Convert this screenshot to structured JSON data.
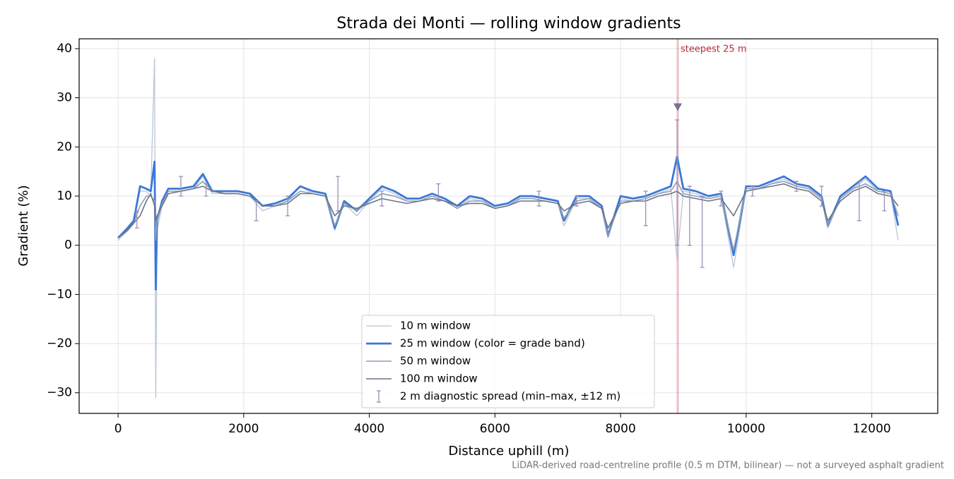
{
  "chart_data": {
    "type": "line",
    "title": "Strada dei Monti — rolling window gradients",
    "xlabel": "Distance uphill (m)",
    "ylabel": "Gradient (%)",
    "footnote": "LiDAR-derived road-centreline profile (0.5 m DTM, bilinear) — not a surveyed asphalt gradient",
    "xlim": [
      -620,
      13050
    ],
    "ylim": [
      -34.2,
      42
    ],
    "xticks": [
      0,
      2000,
      4000,
      6000,
      8000,
      10000,
      12000
    ],
    "yticks": [
      {
        "value": -30,
        "label": "−30"
      },
      {
        "value": -20,
        "label": "−20"
      },
      {
        "value": -10,
        "label": "−10"
      },
      0,
      10,
      20,
      30,
      40
    ],
    "grid": true,
    "legend": "lower center",
    "x": [
      0,
      150,
      250,
      350,
      450,
      520,
      580,
      600,
      620,
      700,
      800,
      1000,
      1200,
      1350,
      1500,
      1700,
      1900,
      2100,
      2300,
      2500,
      2700,
      2900,
      3100,
      3300,
      3450,
      3600,
      3800,
      4000,
      4200,
      4400,
      4600,
      4800,
      5000,
      5200,
      5400,
      5600,
      5800,
      6000,
      6200,
      6400,
      6600,
      6800,
      7000,
      7100,
      7300,
      7500,
      7700,
      7800,
      8000,
      8200,
      8400,
      8600,
      8800,
      8900,
      9000,
      9200,
      9400,
      9600,
      9800,
      10000,
      10200,
      10400,
      10600,
      10800,
      11000,
      11200,
      11300,
      11500,
      11700,
      11900,
      12100,
      12300,
      12420
    ],
    "series": [
      {
        "name": "10 m window",
        "color": "#b9c5d5",
        "width": 1.3,
        "values": [
          1,
          3,
          5,
          11,
          11,
          10,
          38,
          -31,
          3,
          8,
          11,
          11,
          11.5,
          14,
          10.5,
          10.5,
          10.5,
          10,
          7,
          8,
          9,
          12,
          10.5,
          10,
          3,
          8.5,
          6,
          9,
          11.5,
          10.5,
          9,
          9,
          10,
          9,
          7.5,
          9.5,
          9,
          7.5,
          8,
          9.5,
          9.5,
          9,
          8.5,
          4,
          9.5,
          9.5,
          7.5,
          1.5,
          9.5,
          9,
          9.5,
          10.5,
          11.5,
          -3,
          11,
          10.5,
          9.5,
          10,
          -4.5,
          11.5,
          11.5,
          12.5,
          13.5,
          12,
          11.5,
          9.5,
          3.5,
          9.5,
          11.5,
          13.5,
          11,
          10.5,
          1
        ]
      },
      {
        "name": "25 m window (color = grade band)",
        "color": "#3a78d8",
        "width": 2.8,
        "values": [
          1.5,
          3.5,
          5,
          12,
          11.5,
          11,
          17,
          -9,
          5,
          9,
          11.5,
          11.5,
          12,
          14.5,
          11,
          11,
          11,
          10.5,
          8,
          8.5,
          9.5,
          12,
          11,
          10.5,
          3.5,
          9,
          7,
          9.5,
          12,
          11,
          9.5,
          9.5,
          10.5,
          9.5,
          8,
          10,
          9.5,
          8,
          8.5,
          10,
          10,
          9.5,
          9,
          5,
          10,
          10,
          8,
          2,
          10,
          9.5,
          10,
          11,
          12,
          18,
          11.5,
          11,
          10,
          10.5,
          -2,
          12,
          12,
          13,
          14,
          12.5,
          12,
          10,
          4,
          10,
          12,
          14,
          11.5,
          11,
          4
        ]
      },
      {
        "name": "50 m window",
        "color": "#8f9db5",
        "width": 1.6,
        "values": [
          1.5,
          3,
          4.5,
          8,
          10,
          10,
          9,
          1,
          5,
          8.5,
          11,
          11,
          11.5,
          13,
          11,
          10.5,
          10.5,
          10,
          8,
          8,
          9,
          11,
          10.5,
          10,
          4,
          8.5,
          7,
          9,
          10.5,
          10,
          9,
          9,
          10,
          9,
          7.5,
          9,
          9,
          7.5,
          8,
          9.5,
          9.5,
          9,
          8.5,
          5.5,
          9,
          9.5,
          7.5,
          2,
          9,
          9,
          9.5,
          10.5,
          11,
          13,
          10.5,
          10,
          9.5,
          10,
          -1,
          11.5,
          11.5,
          12.5,
          13,
          12,
          11.5,
          9.5,
          4,
          9.5,
          11.5,
          12.5,
          11,
          10.5,
          6
        ]
      },
      {
        "name": "100 m window",
        "color": "#6b7488",
        "width": 1.6,
        "values": [
          1.5,
          3,
          4.5,
          6,
          9,
          10.5,
          8,
          5,
          6,
          8,
          10.5,
          11,
          11.5,
          12,
          11,
          10.5,
          10.5,
          10,
          8,
          8,
          8.5,
          10.5,
          10.5,
          10,
          6,
          8,
          7.5,
          8.5,
          9.5,
          9,
          8.5,
          9,
          9.5,
          9,
          8,
          8.5,
          8.5,
          7.5,
          8,
          9,
          9,
          9,
          8.5,
          7,
          8.5,
          9,
          7.5,
          3.5,
          8.5,
          9,
          9,
          10,
          10.5,
          11,
          10,
          9.5,
          9,
          9.5,
          6,
          11,
          11.5,
          12,
          12.5,
          11.5,
          11,
          9,
          5,
          9,
          11,
          12,
          10.5,
          10,
          8
        ]
      }
    ],
    "errorbars": {
      "name": "2 m diagnostic spread (min–max, ±12 m)",
      "color": "#9a8fb8",
      "x": [
        300,
        1000,
        1400,
        2200,
        2700,
        3500,
        4200,
        5100,
        6700,
        7300,
        8400,
        8900,
        9100,
        9300,
        9600,
        10100,
        10800,
        11200,
        11800,
        12200
      ],
      "low": [
        3.5,
        10,
        10,
        5,
        6,
        7,
        8,
        9,
        8,
        8,
        4,
        0,
        0,
        -4.5,
        8,
        10,
        11,
        8,
        5,
        7
      ],
      "high": [
        7,
        14,
        12.5,
        9,
        10,
        14,
        11,
        12.5,
        11,
        10,
        11,
        25.5,
        12,
        10,
        11,
        12,
        13,
        12,
        13,
        11
      ]
    },
    "annotation": {
      "text": "steepest 25 m",
      "x": 8910,
      "color": "#c0283a"
    },
    "marker": {
      "x": 8910,
      "y": 28,
      "color": "#7a7196"
    }
  }
}
